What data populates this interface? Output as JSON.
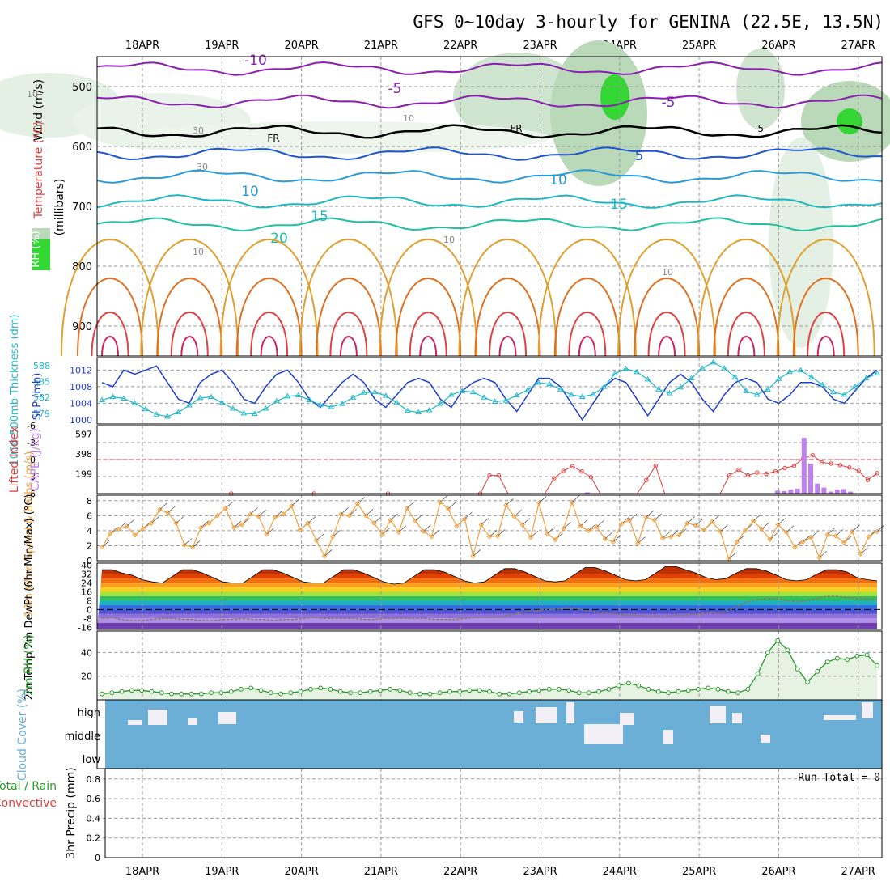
{
  "title": "GFS 0~10day 3-hourly for GENINA (22.5E, 13.5N)",
  "dates": [
    "18APR",
    "19APR",
    "20APR",
    "21APR",
    "22APR",
    "23APR",
    "24APR",
    "25APR",
    "26APR",
    "27APR"
  ],
  "colors": {
    "grid": "#9a9a9a",
    "axis": "#000000",
    "temp": "#e06020",
    "dewpt": "#8a7a5a",
    "slp": "#1f3fcf",
    "thick": "#21b8c8",
    "li": "#e04040",
    "cape": "#c080f0",
    "wind": "#f0a040",
    "rh": "#2a9a2a",
    "cloud": "#6baed6",
    "cloudgap": "#f2f0f6"
  },
  "chart_data": [
    {
      "type": "contour",
      "panel": "upper-air",
      "ylabel_parts": [
        "Wind (m/s)",
        "Temperature (°C)",
        "RH (%)"
      ],
      "ylabel2": "(millibars)",
      "y_ticks": [
        500,
        600,
        700,
        800,
        900
      ],
      "ylim": [
        950,
        450
      ],
      "isotherm_labels": [
        "-10",
        "-5",
        "-5",
        "FR",
        "FR",
        "-5",
        "5",
        "10",
        "10",
        "15",
        "15",
        "20"
      ],
      "rh_labels": [
        "10",
        "10",
        "30",
        "30",
        "10",
        "10",
        "10"
      ]
    },
    {
      "type": "line",
      "panel": "slp-thickness",
      "ylabel_left": "1000-500mb Thickness (dm)",
      "ylabel_right": "SLP (mb)",
      "left_ticks": [
        "588",
        "585",
        "582",
        "579"
      ],
      "right_ticks": [
        "1012",
        "1008",
        "1004",
        "1000"
      ],
      "series": [
        {
          "name": "SLP (mb)",
          "values": [
            1009,
            1008,
            1012,
            1011,
            1012,
            1013,
            1009,
            1005,
            1004,
            1009,
            1011,
            1012,
            1009,
            1005,
            1004,
            1008,
            1011,
            1012,
            1009,
            1005,
            1003,
            1006,
            1009,
            1011,
            1009,
            1005,
            1003,
            1006,
            1009,
            1010,
            1009,
            1005,
            1003,
            1007,
            1009,
            1010,
            1009,
            1005,
            1002,
            1006,
            1010,
            1010,
            1008,
            1004,
            1000,
            1004,
            1008,
            1010,
            1009,
            1005,
            1001,
            1005,
            1009,
            1011,
            1009,
            1005,
            1002,
            1006,
            1009,
            1010,
            1009,
            1005,
            1004,
            1006,
            1009,
            1009,
            1008,
            1005,
            1004,
            1007,
            1010,
            1012
          ]
        },
        {
          "name": "1000-500mb Thickness (dm)",
          "values": [
            581.5,
            582.1,
            581.8,
            580.9,
            579.8,
            578.8,
            578.4,
            579.2,
            580.5,
            581.9,
            582.1,
            581.0,
            579.9,
            579.0,
            578.9,
            579.9,
            581.3,
            582.2,
            582.4,
            581.5,
            580.6,
            580.2,
            580.8,
            582.0,
            582.9,
            583.0,
            582.3,
            581.0,
            579.5,
            579.2,
            579.6,
            580.8,
            582.5,
            583.2,
            583.0,
            582.0,
            581.2,
            581.4,
            582.4,
            583.4,
            584.8,
            584.5,
            583.5,
            582.5,
            582.1,
            582.6,
            584.0,
            586.5,
            587.4,
            586.8,
            585.4,
            583.5,
            582.8,
            583.9,
            585.6,
            587.5,
            588.6,
            587.5,
            585.8,
            583.2,
            582.5,
            583.5,
            585.5,
            586.8,
            587.1,
            585.8,
            584.4,
            583.0,
            582.5,
            584.0,
            585.6,
            586.5
          ]
        }
      ]
    },
    {
      "type": "bar+line",
      "panel": "lifted-index-cape",
      "ylabel_left": "Lifted Index",
      "ylabel_right": "CAPE (J/kg)",
      "li_ticks": [
        "-6",
        "-3",
        "0",
        "3",
        "6"
      ],
      "cape_ticks": [
        "597",
        "398",
        "199"
      ],
      "series": [
        {
          "name": "Lifted Index",
          "values": [
            7,
            7,
            7,
            7,
            7,
            7,
            7,
            7,
            7,
            7,
            7,
            7,
            7,
            7,
            6,
            7,
            7,
            7,
            7,
            7,
            7,
            7,
            7,
            6.2,
            7,
            7,
            7,
            7,
            7,
            7,
            7,
            6.2,
            7,
            7,
            7,
            7,
            7,
            7,
            7,
            7,
            7,
            6.6,
            2.8,
            2.8,
            7,
            7,
            7,
            7,
            7,
            3.3,
            2.0,
            1.2,
            2.1,
            3.1,
            7,
            7,
            7,
            7,
            7,
            3.6,
            1.1,
            7,
            7,
            7,
            7,
            7,
            7,
            7,
            2.8,
            1.8,
            2.8,
            2.3,
            2.5,
            2.1,
            1.5,
            1.1,
            -0.2,
            -0.8,
            0.5,
            0.7,
            1.0,
            1.4,
            2.0,
            3.6,
            2.4
          ]
        },
        {
          "name": "CAPE (J/kg)",
          "values": [
            0,
            0,
            0,
            0,
            0,
            0,
            0,
            0,
            0,
            0,
            0,
            0,
            0,
            0,
            0,
            0,
            0,
            0,
            0,
            0,
            0,
            0,
            0,
            0,
            0,
            0,
            0,
            0,
            0,
            0,
            0,
            0,
            0,
            0,
            0,
            0,
            0,
            0,
            0,
            0,
            0,
            0,
            0,
            0,
            0,
            0,
            0,
            0,
            0,
            0,
            0,
            0,
            0,
            0,
            0,
            0,
            0,
            0,
            0,
            0,
            0,
            0,
            0,
            0,
            0,
            0,
            0,
            0,
            0,
            0,
            0,
            0,
            0,
            0,
            0,
            0,
            0,
            0,
            0,
            0,
            0,
            0,
            0,
            0,
            0
          ]
        }
      ],
      "cape_bars_day8": [
        30,
        25,
        40,
        50,
        560,
        300,
        100,
        60,
        20,
        40,
        45,
        20
      ]
    },
    {
      "type": "line",
      "panel": "wind-10m",
      "ylabel": "10m Wind Speed & Barbs (m/s)",
      "ylim": [
        0,
        8
      ],
      "y_ticks": [
        "0",
        "2",
        "4",
        "6",
        "8"
      ],
      "series": [
        {
          "name": "10m Wind Speed",
          "values": [
            1.8,
            3.6,
            4.2,
            4.6,
            3.4,
            4.3,
            5.0,
            6.8,
            6.4,
            5.0,
            2.1,
            1.8,
            4.4,
            5.0,
            6.0,
            7.0,
            4.4,
            4.8,
            6.2,
            5.9,
            3.5,
            5.8,
            6.2,
            7.3,
            4.1,
            5.0,
            2.7,
            0.6,
            3.2,
            6.2,
            6.0,
            7.6,
            6.0,
            5.0,
            3.5,
            5.4,
            3.8,
            7.0,
            5.3,
            3.9,
            3.2,
            7.8,
            6.9,
            4.6,
            5.6,
            0.6,
            4.8,
            3.2,
            3.3,
            7.4,
            5.9,
            4.8,
            3.1,
            7.7,
            3.6,
            2.8,
            4.3,
            7.8,
            4.6,
            4.0,
            4.5,
            2.9,
            2.5,
            4.9,
            5.4,
            2.3,
            5.8,
            5.4,
            3.0,
            3.2,
            3.4,
            5.0,
            4.7,
            4.1,
            5.2,
            3.9,
            0.2,
            2.5,
            4.0,
            5.3,
            4.2,
            2.8,
            4.8,
            3.8,
            1.8,
            2.5,
            3.1,
            0.4,
            3.5,
            3.3,
            2.4,
            3.9,
            0.9,
            3.2,
            3.9
          ]
        }
      ]
    },
    {
      "type": "area",
      "panel": "temperature-2m",
      "ylabel": "2m Temp 2m DewPt (6hr Min/Max) (°C)",
      "y_ticks": [
        "40",
        "32",
        "24",
        "16",
        "8",
        "0",
        "-8",
        "-16"
      ],
      "ylim": [
        -16,
        40
      ],
      "series": [
        {
          "name": "2m Temp",
          "values": [
            36,
            36,
            33,
            31,
            27,
            25,
            24,
            30,
            36,
            36,
            33,
            29,
            25,
            24,
            24,
            30,
            36,
            36,
            33,
            29,
            25,
            24,
            24,
            30,
            36,
            36,
            33,
            29,
            25,
            23,
            24,
            30,
            36,
            36,
            34,
            30,
            26,
            24,
            25,
            31,
            37,
            37,
            34,
            30,
            26,
            25,
            26,
            32,
            38,
            38,
            35,
            31,
            27,
            26,
            27,
            33,
            39,
            39,
            36,
            33,
            29,
            27,
            28,
            33,
            37,
            37,
            35,
            31,
            27,
            26,
            27,
            32,
            36,
            36,
            34,
            29,
            27,
            26
          ]
        },
        {
          "name": "2m DewPt",
          "values": [
            -8,
            -7,
            -9,
            -10,
            -10,
            -9,
            -8,
            -8,
            -9,
            -9,
            -10,
            -10,
            -9,
            -9,
            -8,
            -9,
            -9,
            -10,
            -9,
            -9,
            -8,
            -7,
            -8,
            -8,
            -8,
            -8,
            -9,
            -9,
            -8,
            -8,
            -8,
            -8,
            -8,
            -9,
            -9,
            -9,
            -8,
            -7,
            -7,
            -7,
            -6,
            -4,
            -2,
            -1,
            0,
            0,
            1,
            1,
            -1,
            -2,
            -3,
            -4,
            -5,
            -5,
            -6,
            -6,
            -6,
            -5,
            -5,
            -4,
            -3,
            -3,
            -2,
            2,
            7,
            9,
            10,
            10,
            8,
            7,
            8,
            10,
            12,
            12,
            11,
            10,
            10,
            9
          ]
        }
      ]
    },
    {
      "type": "area",
      "panel": "rh-2m",
      "ylabel": "2m RH (%)",
      "y_ticks": [
        "40",
        "20"
      ],
      "ylim": [
        0,
        60
      ],
      "series": [
        {
          "name": "2m RH",
          "values": [
            5,
            6,
            7,
            8,
            8,
            7,
            6,
            5,
            5,
            5,
            5,
            6,
            6,
            7,
            9,
            10,
            8,
            6,
            5,
            6,
            7,
            9,
            10,
            9,
            7,
            6,
            6,
            7,
            8,
            9,
            8,
            6,
            5,
            5,
            6,
            7,
            7,
            8,
            8,
            7,
            5,
            5,
            6,
            7,
            8,
            9,
            9,
            8,
            6,
            6,
            7,
            9,
            12,
            14,
            12,
            9,
            7,
            6,
            7,
            8,
            9,
            10,
            9,
            7,
            6,
            9,
            22,
            40,
            50,
            42,
            26,
            15,
            24,
            32,
            35,
            34,
            37,
            38,
            29
          ]
        }
      ]
    },
    {
      "type": "bar",
      "panel": "cloud-cover",
      "ylabel": "Cloud Cover (%)",
      "y_ticks": [
        "high",
        "middle",
        "low"
      ]
    },
    {
      "type": "bar",
      "panel": "precip",
      "ylabel_parts": [
        "Total / Rain",
        "Convective",
        "3hr Precip (mm)"
      ],
      "y_ticks": [
        "0.8",
        "0.6",
        "0.4",
        "0.2",
        "0"
      ],
      "ylim": [
        0,
        0.9
      ],
      "run_total_label": "Run Total = 0"
    }
  ]
}
